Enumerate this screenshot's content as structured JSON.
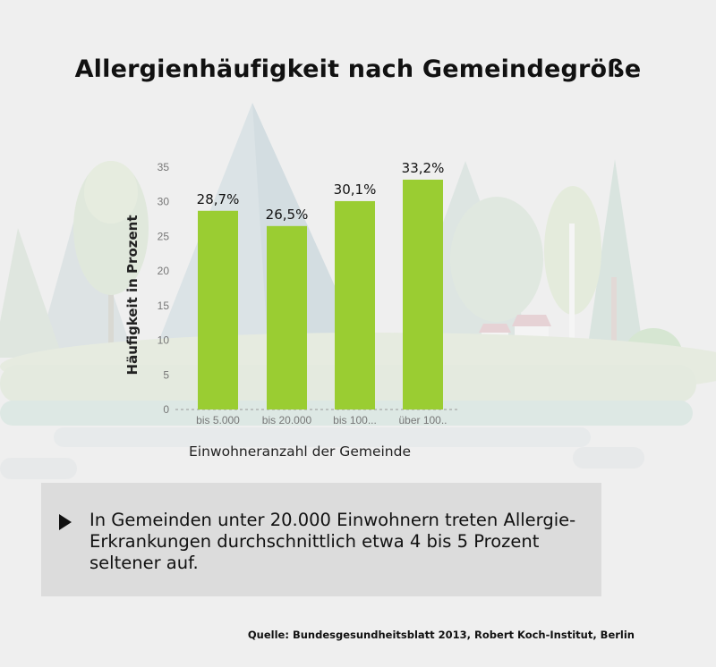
{
  "title": "Allergienhäufigkeit nach Gemeindegröße",
  "chart_data": {
    "type": "bar",
    "categories": [
      "bis 5.000",
      "bis 20.000",
      "bis 100...",
      "über 100.."
    ],
    "values": [
      28.7,
      26.5,
      30.1,
      33.2
    ],
    "value_labels": [
      "28,7%",
      "26,5%",
      "30,1%",
      "33,2%"
    ],
    "xlabel": "Einwohneranzahl der Gemeinde",
    "ylabel": "Häufigkeit in Prozent",
    "ylim": [
      0,
      35
    ],
    "yticks": [
      0,
      5,
      10,
      15,
      20,
      25,
      30,
      35
    ],
    "grid": false,
    "bar_color": "#9acd32"
  },
  "note": {
    "text": "In Gemeinden unter 20.000 Einwohnern treten Allergie-Erkrankungen durchschnittlich etwa 4 bis 5 Prozent seltener auf."
  },
  "source": "Quelle: Bundesgesundheitsblatt 2013, Robert Koch-Institut, Berlin"
}
